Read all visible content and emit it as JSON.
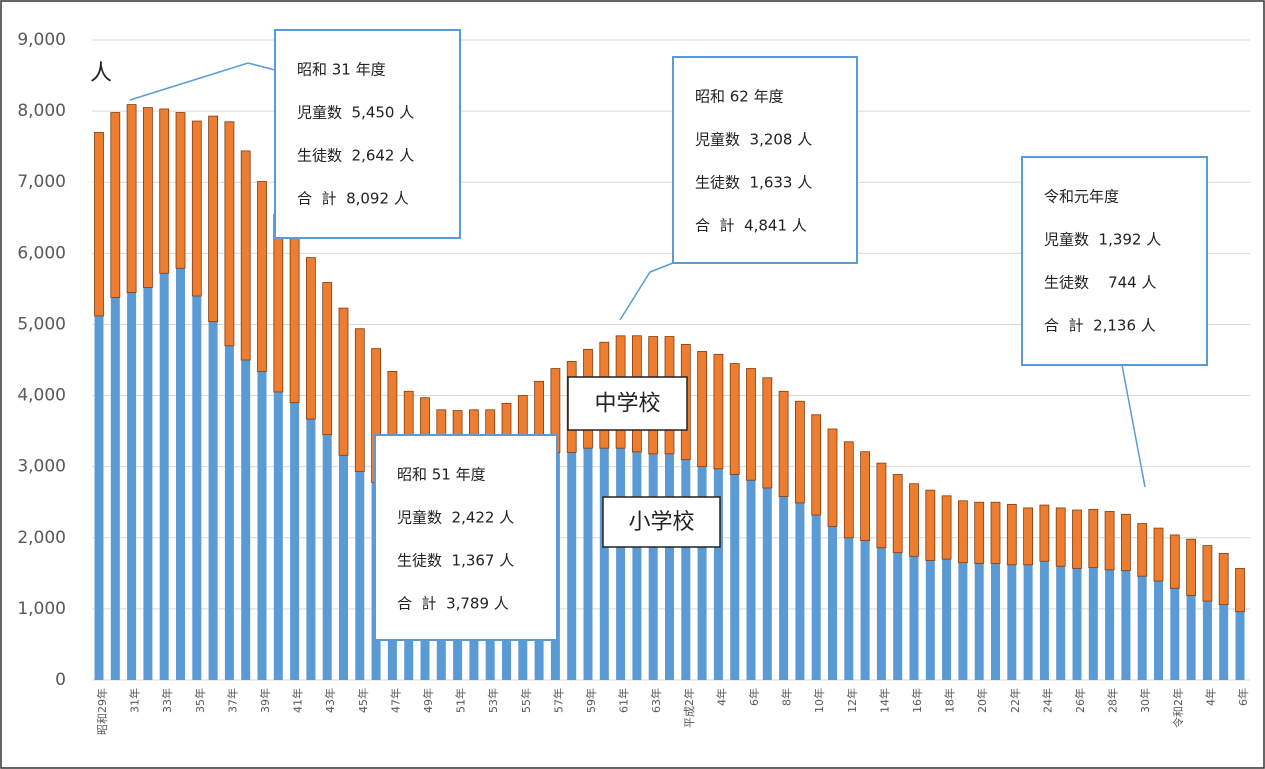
{
  "chart_data": {
    "type": "stacked_bar",
    "unit_label": "人",
    "categories": [
      "昭和29年",
      null,
      "31年",
      null,
      "33年",
      null,
      "35年",
      null,
      "37年",
      null,
      "39年",
      null,
      "41年",
      null,
      "43年",
      null,
      "45年",
      null,
      "47年",
      null,
      "49年",
      null,
      "51年",
      null,
      "53年",
      null,
      "55年",
      null,
      "57年",
      null,
      "59年",
      null,
      "61年",
      null,
      "63年",
      null,
      "平成2年",
      null,
      "4年",
      null,
      "6年",
      null,
      "8年",
      null,
      "10年",
      null,
      "12年",
      null,
      "14年",
      null,
      "16年",
      null,
      "18年",
      null,
      "20年",
      null,
      "22年",
      null,
      "24年",
      null,
      "26年",
      null,
      "28年",
      null,
      "30年",
      null,
      "令和2年",
      null,
      "4年",
      null,
      "6年"
    ],
    "series": [
      {
        "name": "小学校",
        "color": "#5b9bd5",
        "values": [
          5120,
          5380,
          5450,
          5520,
          5720,
          5790,
          5400,
          5040,
          4700,
          4500,
          4340,
          4050,
          3900,
          3670,
          3450,
          3160,
          2930,
          2780,
          2650,
          2560,
          2500,
          2460,
          2422,
          2450,
          2500,
          2560,
          2650,
          2800,
          3200,
          3200,
          3260,
          3260,
          3260,
          3208,
          3180,
          3180,
          3100,
          3000,
          2970,
          2890,
          2810,
          2700,
          2580,
          2490,
          2320,
          2160,
          2000,
          1960,
          1860,
          1790,
          1740,
          1680,
          1700,
          1650,
          1640,
          1640,
          1620,
          1620,
          1670,
          1600,
          1570,
          1580,
          1550,
          1540,
          1460,
          1392,
          1290,
          1190,
          1110,
          1060,
          960
        ]
      },
      {
        "name": "中学校",
        "color": "#ed7d31",
        "values": [
          2580,
          2600,
          2642,
          2530,
          2310,
          2190,
          2460,
          2890,
          3150,
          2940,
          2670,
          2500,
          2350,
          2270,
          2140,
          2070,
          2010,
          1880,
          1690,
          1500,
          1470,
          1340,
          1367,
          1350,
          1300,
          1330,
          1350,
          1400,
          1180,
          1280,
          1390,
          1490,
          1580,
          1633,
          1650,
          1650,
          1620,
          1620,
          1610,
          1560,
          1570,
          1550,
          1480,
          1430,
          1410,
          1370,
          1350,
          1250,
          1190,
          1100,
          1020,
          990,
          890,
          870,
          860,
          860,
          850,
          800,
          790,
          820,
          820,
          820,
          820,
          790,
          740,
          744,
          750,
          790,
          780,
          720,
          610
        ]
      }
    ],
    "ylim": [
      0,
      9000
    ],
    "yticks": [
      0,
      {
        "value": 1000,
        "label": "1,000"
      },
      {
        "value": 2000,
        "label": "2,000"
      },
      {
        "value": 3000,
        "label": "3,000"
      },
      {
        "value": 4000,
        "label": "4,000"
      },
      {
        "value": 5000,
        "label": "5,000"
      },
      {
        "value": 6000,
        "label": "6,000"
      },
      {
        "value": 7000,
        "label": "7,000"
      },
      {
        "value": 8000,
        "label": "8,000"
      },
      {
        "value": 9000,
        "label": "9,000"
      }
    ],
    "grid": true,
    "annotations": [
      {
        "lines": [
          "昭和 31 年度",
          "児童数  5,450 人",
          "生徒数  2,642 人",
          "合  計  8,092 人"
        ]
      },
      {
        "lines": [
          "昭和 51 年度",
          "児童数  2,422 人",
          "生徒数  1,367 人",
          "合  計  3,789 人"
        ]
      },
      {
        "lines": [
          "昭和 62 年度",
          "児童数  3,208 人",
          "生徒数  1,633 人",
          "合  計  4,841 人"
        ]
      },
      {
        "lines": [
          "令和元年度",
          "児童数  1,392 人",
          "生徒数    744 人",
          "合  計  2,136 人"
        ]
      }
    ]
  }
}
